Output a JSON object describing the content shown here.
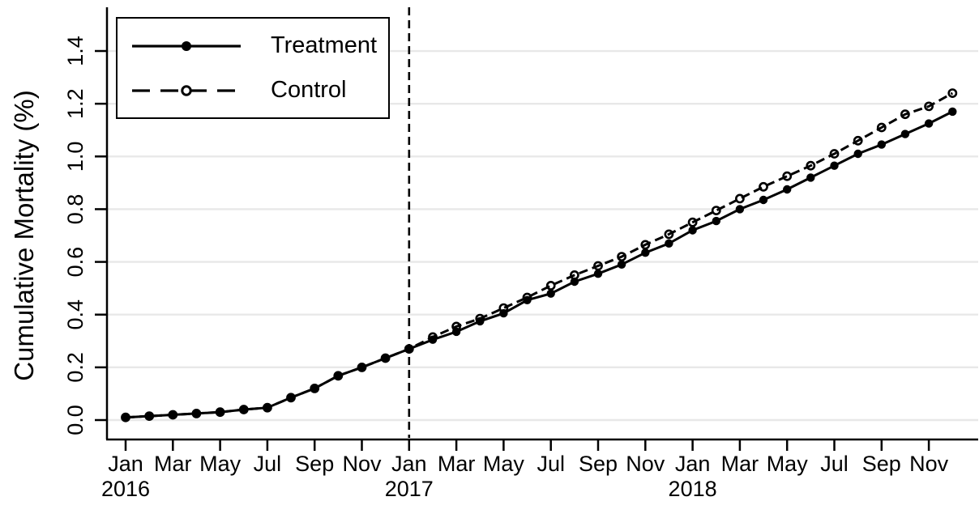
{
  "colors": {
    "line": "#000000",
    "grid": "#e8e8e8",
    "background": "#ffffff",
    "text": "#000000"
  },
  "chart_data": {
    "type": "line",
    "title": "",
    "xlabel": "",
    "ylabel": "Cumulative Mortality (%)",
    "grid": "horizontal",
    "legend_position": "top-left",
    "ylim": [
      0,
      1.48
    ],
    "y_tick_labels": [
      "0.0",
      "0.2",
      "0.4",
      "0.6",
      "0.8",
      "1.0",
      "1.2",
      "1.4"
    ],
    "x_months": [
      "Jan 2016",
      "Feb 2016",
      "Mar 2016",
      "Apr 2016",
      "May 2016",
      "Jun 2016",
      "Jul 2016",
      "Aug 2016",
      "Sep 2016",
      "Oct 2016",
      "Nov 2016",
      "Dec 2016",
      "Jan 2017",
      "Feb 2017",
      "Mar 2017",
      "Apr 2017",
      "May 2017",
      "Jun 2017",
      "Jul 2017",
      "Aug 2017",
      "Sep 2017",
      "Oct 2017",
      "Nov 2017",
      "Dec 2017",
      "Jan 2018",
      "Feb 2018",
      "Mar 2018",
      "Apr 2018",
      "May 2018",
      "Jun 2018",
      "Jul 2018",
      "Aug 2018",
      "Sep 2018",
      "Oct 2018",
      "Nov 2018",
      "Dec 2018"
    ],
    "x_ticks": [
      {
        "m": 0,
        "label": "Jan"
      },
      {
        "m": 2,
        "label": "Mar"
      },
      {
        "m": 4,
        "label": "May"
      },
      {
        "m": 6,
        "label": "Jul"
      },
      {
        "m": 8,
        "label": "Sep"
      },
      {
        "m": 10,
        "label": "Nov"
      },
      {
        "m": 12,
        "label": "Jan"
      },
      {
        "m": 14,
        "label": "Mar"
      },
      {
        "m": 16,
        "label": "May"
      },
      {
        "m": 18,
        "label": "Jul"
      },
      {
        "m": 20,
        "label": "Sep"
      },
      {
        "m": 22,
        "label": "Nov"
      },
      {
        "m": 24,
        "label": "Jan"
      },
      {
        "m": 26,
        "label": "Mar"
      },
      {
        "m": 28,
        "label": "May"
      },
      {
        "m": 30,
        "label": "Jul"
      },
      {
        "m": 32,
        "label": "Sep"
      },
      {
        "m": 34,
        "label": "Nov"
      }
    ],
    "x_year_ticks": [
      {
        "m": 0,
        "label": "2016"
      },
      {
        "m": 12,
        "label": "2017"
      },
      {
        "m": 24,
        "label": "2018"
      }
    ],
    "vline": {
      "at_month": "Jan 2017",
      "month_index": 12,
      "style": "dashed"
    },
    "series": [
      {
        "name": "Treatment",
        "line": "solid",
        "marker": "filled-circle",
        "values": [
          0.01,
          0.015,
          0.02,
          0.025,
          0.03,
          0.04,
          0.047,
          0.085,
          0.12,
          0.168,
          0.2,
          0.235,
          0.27,
          0.305,
          0.335,
          0.375,
          0.405,
          0.455,
          0.48,
          0.525,
          0.555,
          0.59,
          0.635,
          0.67,
          0.72,
          0.755,
          0.8,
          0.835,
          0.875,
          0.92,
          0.965,
          1.01,
          1.045,
          1.085,
          1.125,
          1.17
        ]
      },
      {
        "name": "Control",
        "line": "dashed",
        "marker": "open-circle",
        "values": [
          0.01,
          0.015,
          0.02,
          0.025,
          0.03,
          0.04,
          0.047,
          0.085,
          0.12,
          0.168,
          0.2,
          0.235,
          0.27,
          0.315,
          0.355,
          0.385,
          0.425,
          0.465,
          0.51,
          0.55,
          0.585,
          0.62,
          0.665,
          0.705,
          0.75,
          0.795,
          0.84,
          0.885,
          0.925,
          0.965,
          1.01,
          1.06,
          1.11,
          1.16,
          1.19,
          1.24
        ]
      }
    ]
  }
}
